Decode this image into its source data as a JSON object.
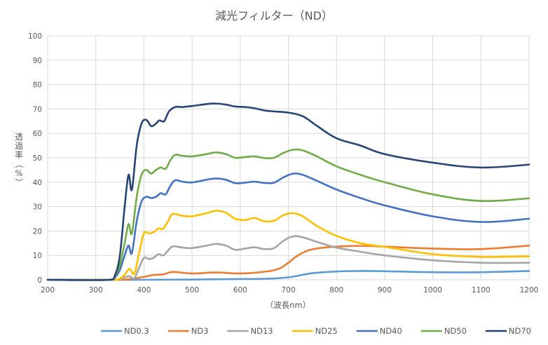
{
  "chart_data": {
    "type": "line",
    "title": "減光フィルター（ND）",
    "xlabel": "（波長nm）",
    "ylabel": "透過率（%）",
    "xlim": [
      200,
      1200
    ],
    "ylim": [
      0,
      100
    ],
    "xticks": [
      200,
      300,
      400,
      500,
      600,
      700,
      800,
      900,
      1000,
      1100,
      1200
    ],
    "yticks": [
      0,
      10,
      20,
      30,
      40,
      50,
      60,
      70,
      80,
      90,
      100
    ],
    "grid": true,
    "legend_position": "bottom",
    "series": [
      {
        "name": "ND0.3",
        "color": "#5b9bd5",
        "points": [
          [
            200,
            0
          ],
          [
            340,
            0
          ],
          [
            400,
            0
          ],
          [
            500,
            0.1
          ],
          [
            600,
            0.3
          ],
          [
            650,
            0.4
          ],
          [
            700,
            1
          ],
          [
            750,
            2.7
          ],
          [
            800,
            3.4
          ],
          [
            850,
            3.6
          ],
          [
            900,
            3.5
          ],
          [
            1000,
            3.1
          ],
          [
            1100,
            3.1
          ],
          [
            1200,
            3.6
          ]
        ]
      },
      {
        "name": "ND3",
        "color": "#ed7d31",
        "points": [
          [
            200,
            0
          ],
          [
            340,
            0
          ],
          [
            370,
            0.3
          ],
          [
            400,
            1.2
          ],
          [
            420,
            2
          ],
          [
            440,
            2.2
          ],
          [
            460,
            3.2
          ],
          [
            500,
            2.6
          ],
          [
            550,
            3
          ],
          [
            600,
            2.6
          ],
          [
            650,
            3.3
          ],
          [
            680,
            4.5
          ],
          [
            700,
            7
          ],
          [
            720,
            10
          ],
          [
            750,
            12.5
          ],
          [
            800,
            13.6
          ],
          [
            850,
            13.9
          ],
          [
            900,
            13.6
          ],
          [
            1000,
            12.8
          ],
          [
            1100,
            12.6
          ],
          [
            1200,
            14
          ]
        ]
      },
      {
        "name": "ND13",
        "color": "#a5a5a5",
        "points": [
          [
            200,
            0
          ],
          [
            340,
            0
          ],
          [
            360,
            1
          ],
          [
            370,
            1.5
          ],
          [
            380,
            0.6
          ],
          [
            390,
            5
          ],
          [
            400,
            9
          ],
          [
            410,
            8.5
          ],
          [
            420,
            9
          ],
          [
            430,
            10.5
          ],
          [
            440,
            10
          ],
          [
            450,
            12
          ],
          [
            460,
            13.7
          ],
          [
            480,
            13.2
          ],
          [
            500,
            13
          ],
          [
            530,
            14
          ],
          [
            550,
            14.7
          ],
          [
            570,
            14
          ],
          [
            590,
            12.3
          ],
          [
            610,
            12.8
          ],
          [
            630,
            13.3
          ],
          [
            650,
            12.6
          ],
          [
            670,
            13
          ],
          [
            690,
            16
          ],
          [
            710,
            17.8
          ],
          [
            730,
            17.4
          ],
          [
            760,
            15.5
          ],
          [
            800,
            13.2
          ],
          [
            850,
            11.5
          ],
          [
            900,
            10
          ],
          [
            1000,
            8
          ],
          [
            1100,
            7
          ],
          [
            1200,
            7
          ]
        ]
      },
      {
        "name": "ND25",
        "color": "#ffc000",
        "points": [
          [
            200,
            0
          ],
          [
            340,
            0
          ],
          [
            350,
            0.5
          ],
          [
            360,
            2
          ],
          [
            370,
            4.5
          ],
          [
            380,
            2.5
          ],
          [
            390,
            11
          ],
          [
            400,
            19
          ],
          [
            410,
            19
          ],
          [
            420,
            19.5
          ],
          [
            430,
            21
          ],
          [
            440,
            21
          ],
          [
            450,
            24
          ],
          [
            460,
            27
          ],
          [
            480,
            26.2
          ],
          [
            500,
            26
          ],
          [
            530,
            27.3
          ],
          [
            550,
            28.3
          ],
          [
            570,
            27.5
          ],
          [
            590,
            25
          ],
          [
            610,
            24.5
          ],
          [
            630,
            25.3
          ],
          [
            650,
            24
          ],
          [
            670,
            24.2
          ],
          [
            690,
            26.5
          ],
          [
            710,
            27.3
          ],
          [
            730,
            26
          ],
          [
            760,
            22
          ],
          [
            800,
            18
          ],
          [
            850,
            15
          ],
          [
            900,
            13.5
          ],
          [
            1000,
            10.5
          ],
          [
            1100,
            9.4
          ],
          [
            1200,
            9.6
          ]
        ]
      },
      {
        "name": "ND40",
        "color": "#4472c4",
        "points": [
          [
            200,
            0
          ],
          [
            330,
            0
          ],
          [
            340,
            1
          ],
          [
            350,
            4
          ],
          [
            360,
            10
          ],
          [
            368,
            14
          ],
          [
            375,
            11
          ],
          [
            385,
            24
          ],
          [
            395,
            32
          ],
          [
            405,
            34
          ],
          [
            415,
            33.5
          ],
          [
            425,
            34
          ],
          [
            435,
            35.5
          ],
          [
            445,
            35
          ],
          [
            455,
            38.5
          ],
          [
            465,
            40.8
          ],
          [
            480,
            40.2
          ],
          [
            500,
            39.9
          ],
          [
            530,
            41
          ],
          [
            550,
            41.5
          ],
          [
            570,
            41
          ],
          [
            590,
            39.6
          ],
          [
            610,
            39.8
          ],
          [
            630,
            40.2
          ],
          [
            650,
            39.7
          ],
          [
            670,
            39.8
          ],
          [
            690,
            42
          ],
          [
            710,
            43.5
          ],
          [
            730,
            43
          ],
          [
            760,
            40.5
          ],
          [
            800,
            37
          ],
          [
            850,
            33.5
          ],
          [
            900,
            30.5
          ],
          [
            1000,
            26
          ],
          [
            1100,
            23.7
          ],
          [
            1200,
            25
          ]
        ]
      },
      {
        "name": "ND50",
        "color": "#70ad47",
        "points": [
          [
            200,
            0
          ],
          [
            330,
            0
          ],
          [
            340,
            1.5
          ],
          [
            350,
            6
          ],
          [
            360,
            15
          ],
          [
            368,
            22.8
          ],
          [
            375,
            19
          ],
          [
            385,
            34
          ],
          [
            395,
            43
          ],
          [
            405,
            45
          ],
          [
            415,
            43.5
          ],
          [
            425,
            45
          ],
          [
            435,
            46
          ],
          [
            445,
            45.5
          ],
          [
            455,
            49
          ],
          [
            465,
            51.2
          ],
          [
            480,
            50.8
          ],
          [
            500,
            50.6
          ],
          [
            530,
            51.5
          ],
          [
            550,
            52.2
          ],
          [
            570,
            51.5
          ],
          [
            590,
            50
          ],
          [
            610,
            50.3
          ],
          [
            630,
            50.6
          ],
          [
            650,
            49.9
          ],
          [
            670,
            50
          ],
          [
            690,
            52
          ],
          [
            710,
            53.3
          ],
          [
            730,
            53
          ],
          [
            760,
            50.5
          ],
          [
            800,
            46.5
          ],
          [
            850,
            43
          ],
          [
            900,
            40
          ],
          [
            1000,
            35
          ],
          [
            1100,
            32.3
          ],
          [
            1200,
            33.4
          ]
        ]
      },
      {
        "name": "ND70",
        "color": "#264478",
        "points": [
          [
            200,
            0
          ],
          [
            330,
            0
          ],
          [
            340,
            2
          ],
          [
            350,
            10
          ],
          [
            360,
            30
          ],
          [
            368,
            43
          ],
          [
            375,
            37
          ],
          [
            385,
            55
          ],
          [
            395,
            64
          ],
          [
            405,
            65.5
          ],
          [
            415,
            63
          ],
          [
            425,
            64
          ],
          [
            432,
            65.3
          ],
          [
            442,
            65
          ],
          [
            452,
            69
          ],
          [
            465,
            70.8
          ],
          [
            480,
            70.8
          ],
          [
            500,
            71.2
          ],
          [
            530,
            72
          ],
          [
            550,
            72.2
          ],
          [
            570,
            71.8
          ],
          [
            590,
            71
          ],
          [
            610,
            70.8
          ],
          [
            630,
            70.3
          ],
          [
            650,
            69.4
          ],
          [
            670,
            69
          ],
          [
            700,
            68.5
          ],
          [
            730,
            67
          ],
          [
            760,
            63
          ],
          [
            800,
            58
          ],
          [
            850,
            55
          ],
          [
            900,
            51.5
          ],
          [
            1000,
            48
          ],
          [
            1100,
            46
          ],
          [
            1200,
            47.2
          ]
        ]
      }
    ]
  }
}
